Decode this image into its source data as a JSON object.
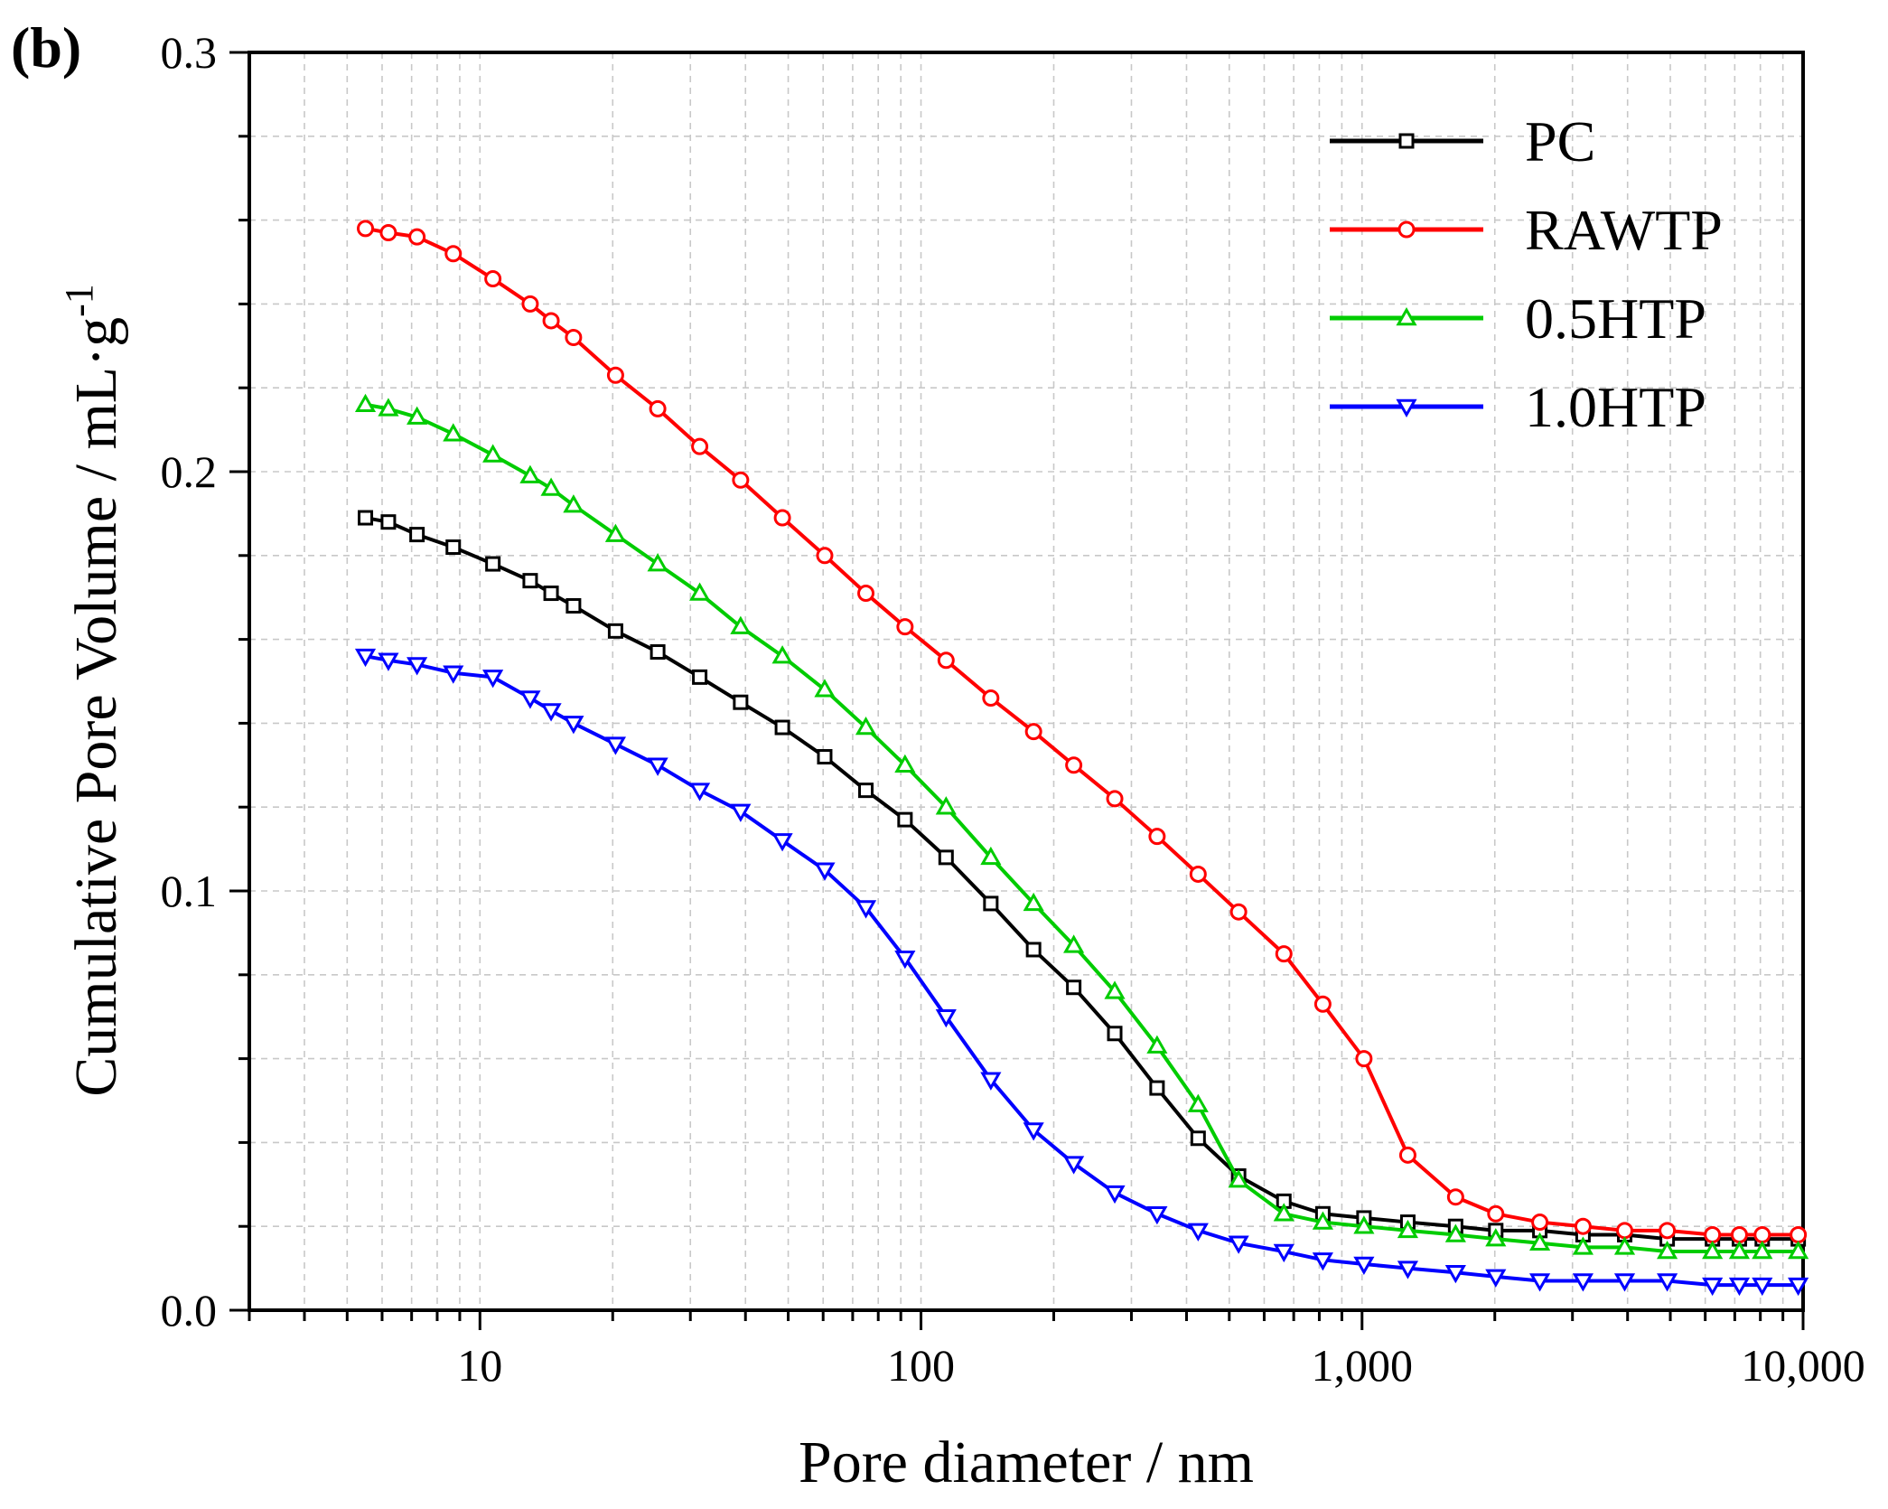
{
  "chart_data": {
    "type": "line",
    "panel_label": "(b)",
    "xlabel": "Pore diameter / nm",
    "ylabel_main": "Cumulative Pore Volume / mL·g",
    "ylabel_superscript": "-1",
    "x_scale": "log",
    "xlim": [
      3,
      10000
    ],
    "ylim": [
      0.0,
      0.3
    ],
    "x_ticks": [
      10,
      100,
      1000,
      10000
    ],
    "x_tick_labels": [
      "10",
      "100",
      "1,000",
      "10,000"
    ],
    "y_ticks": [
      0.0,
      0.1,
      0.2,
      0.3
    ],
    "y_tick_labels": [
      "0.0",
      "0.1",
      "0.2",
      "0.3"
    ],
    "grid": true,
    "legend_position": "top-right",
    "x": [
      5.5,
      6.2,
      7.2,
      8.7,
      10.7,
      13.0,
      14.5,
      16.3,
      20.3,
      25.3,
      31.5,
      39.0,
      48.5,
      60.5,
      75,
      92,
      114,
      144,
      180,
      222,
      275,
      343,
      425,
      525,
      665,
      815,
      1010,
      1270,
      1630,
      2010,
      2530,
      3170,
      3940,
      4920,
      6230,
      7170,
      8080,
      9750
    ],
    "series": [
      {
        "name": "PC",
        "color": "#000000",
        "marker": "square",
        "values": [
          0.189,
          0.188,
          0.185,
          0.182,
          0.178,
          0.174,
          0.171,
          0.168,
          0.162,
          0.157,
          0.151,
          0.145,
          0.139,
          0.132,
          0.124,
          0.117,
          0.108,
          0.097,
          0.086,
          0.077,
          0.066,
          0.053,
          0.041,
          0.032,
          0.026,
          0.023,
          0.022,
          0.021,
          0.02,
          0.019,
          0.019,
          0.018,
          0.018,
          0.017,
          0.017,
          0.017,
          0.017,
          0.017
        ]
      },
      {
        "name": "RAWTP",
        "color": "#ff0000",
        "marker": "circle",
        "values": [
          0.258,
          0.257,
          0.256,
          0.252,
          0.246,
          0.24,
          0.236,
          0.232,
          0.223,
          0.215,
          0.206,
          0.198,
          0.189,
          0.18,
          0.171,
          0.163,
          0.155,
          0.146,
          0.138,
          0.13,
          0.122,
          0.113,
          0.104,
          0.095,
          0.085,
          0.073,
          0.06,
          0.037,
          0.027,
          0.023,
          0.021,
          0.02,
          0.019,
          0.019,
          0.018,
          0.018,
          0.018,
          0.018
        ]
      },
      {
        "name": "0.5HTP",
        "color": "#00cc00",
        "marker": "triangle-up",
        "values": [
          0.216,
          0.215,
          0.213,
          0.209,
          0.204,
          0.199,
          0.196,
          0.192,
          0.185,
          0.178,
          0.171,
          0.163,
          0.156,
          0.148,
          0.139,
          0.13,
          0.12,
          0.108,
          0.097,
          0.087,
          0.076,
          0.063,
          0.049,
          0.031,
          0.023,
          0.021,
          0.02,
          0.019,
          0.018,
          0.017,
          0.016,
          0.015,
          0.015,
          0.014,
          0.014,
          0.014,
          0.014,
          0.014
        ]
      },
      {
        "name": "1.0HTP",
        "color": "#0000ff",
        "marker": "triangle-down",
        "values": [
          0.156,
          0.155,
          0.154,
          0.152,
          0.151,
          0.146,
          0.143,
          0.14,
          0.135,
          0.13,
          0.124,
          0.119,
          0.112,
          0.105,
          0.096,
          0.084,
          0.07,
          0.055,
          0.043,
          0.035,
          0.028,
          0.023,
          0.019,
          0.016,
          0.014,
          0.012,
          0.011,
          0.01,
          0.009,
          0.008,
          0.007,
          0.007,
          0.007,
          0.007,
          0.006,
          0.006,
          0.006,
          0.006
        ]
      }
    ]
  }
}
